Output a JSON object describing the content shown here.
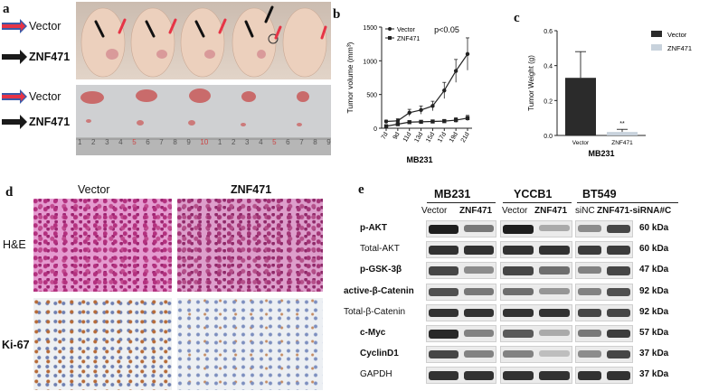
{
  "panel_labels": {
    "a": "a",
    "b": "b",
    "c": "c",
    "d": "d",
    "e": "e"
  },
  "panel_a": {
    "row_labels_top": [
      "Vector",
      "ZNF471"
    ],
    "row_labels_bottom": [
      "Vector",
      "ZNF471"
    ],
    "ruler_numbers": [
      "1",
      "2",
      "3",
      "4",
      "5",
      "6",
      "7",
      "8",
      "9",
      "10",
      "1",
      "2",
      "3",
      "4",
      "5",
      "6",
      "7",
      "8",
      "9"
    ],
    "colors": {
      "red_arrow": "#e63446",
      "blue_arrow": "#3a5ba8",
      "black_arrow": "#1a1a1a"
    }
  },
  "panel_d": {
    "columns": [
      "Vector",
      "ZNF471"
    ],
    "rows": [
      "H&E",
      "Ki-67"
    ]
  },
  "panel_e": {
    "groups": [
      "MB231",
      "YCCB1",
      "BT549"
    ],
    "lane_labels": [
      "Vector",
      "ZNF471",
      "Vector",
      "ZNF471",
      "siNC",
      "ZNF471-siRNA#C"
    ],
    "proteins": [
      {
        "name": "p-AKT",
        "kda": "60 kDa",
        "bold": true
      },
      {
        "name": "Total-AKT",
        "kda": "60 kDa",
        "bold": false
      },
      {
        "name": "p-GSK-3β",
        "kda": "47 kDa",
        "bold": true
      },
      {
        "name": "active-β-Catenin",
        "kda": "92 kDa",
        "bold": true
      },
      {
        "name": "Total-β-Catenin",
        "kda": "92 kDa",
        "bold": false
      },
      {
        "name": "c-Myc",
        "kda": "57 kDa",
        "bold": true
      },
      {
        "name": "CyclinD1",
        "kda": "37 kDa",
        "bold": true
      },
      {
        "name": "GAPDH",
        "kda": "37 kDa",
        "bold": false
      }
    ]
  },
  "chart_data": [
    {
      "type": "line",
      "title": "",
      "annotation": "p<0.05",
      "xlabel": "MB231",
      "ylabel": "Tumor volume (mm³)",
      "categories": [
        "7d",
        "9d",
        "11d",
        "13d",
        "15d",
        "17d",
        "19d",
        "21d"
      ],
      "ylim": [
        0,
        1500
      ],
      "yticks": [
        0,
        500,
        1000,
        1500
      ],
      "legend": "top-left",
      "series": [
        {
          "name": "Vector",
          "marker": "circle",
          "values": [
            100,
            110,
            230,
            270,
            330,
            560,
            850,
            1100
          ],
          "errors": [
            20,
            30,
            50,
            60,
            70,
            120,
            170,
            240
          ]
        },
        {
          "name": "ZNF471",
          "marker": "square",
          "values": [
            30,
            60,
            90,
            95,
            100,
            105,
            120,
            150
          ],
          "errors": [
            10,
            15,
            20,
            20,
            20,
            25,
            35,
            40
          ]
        }
      ]
    },
    {
      "type": "bar",
      "title": "",
      "xlabel": "MB231",
      "ylabel": "Tumor Weight (g)",
      "categories": [
        "Vector",
        "ZNF471"
      ],
      "values": [
        0.33,
        0.02
      ],
      "errors": [
        0.15,
        0.015
      ],
      "ylim": [
        0,
        0.6
      ],
      "yticks": [
        "0.0",
        "0.2",
        "0.4",
        "0.6"
      ],
      "annotation": "**",
      "legend": "top-right",
      "series_names": [
        "Vector",
        "ZNF471"
      ],
      "colors": [
        "#2b2b2b",
        "#c8d2dc"
      ]
    }
  ]
}
